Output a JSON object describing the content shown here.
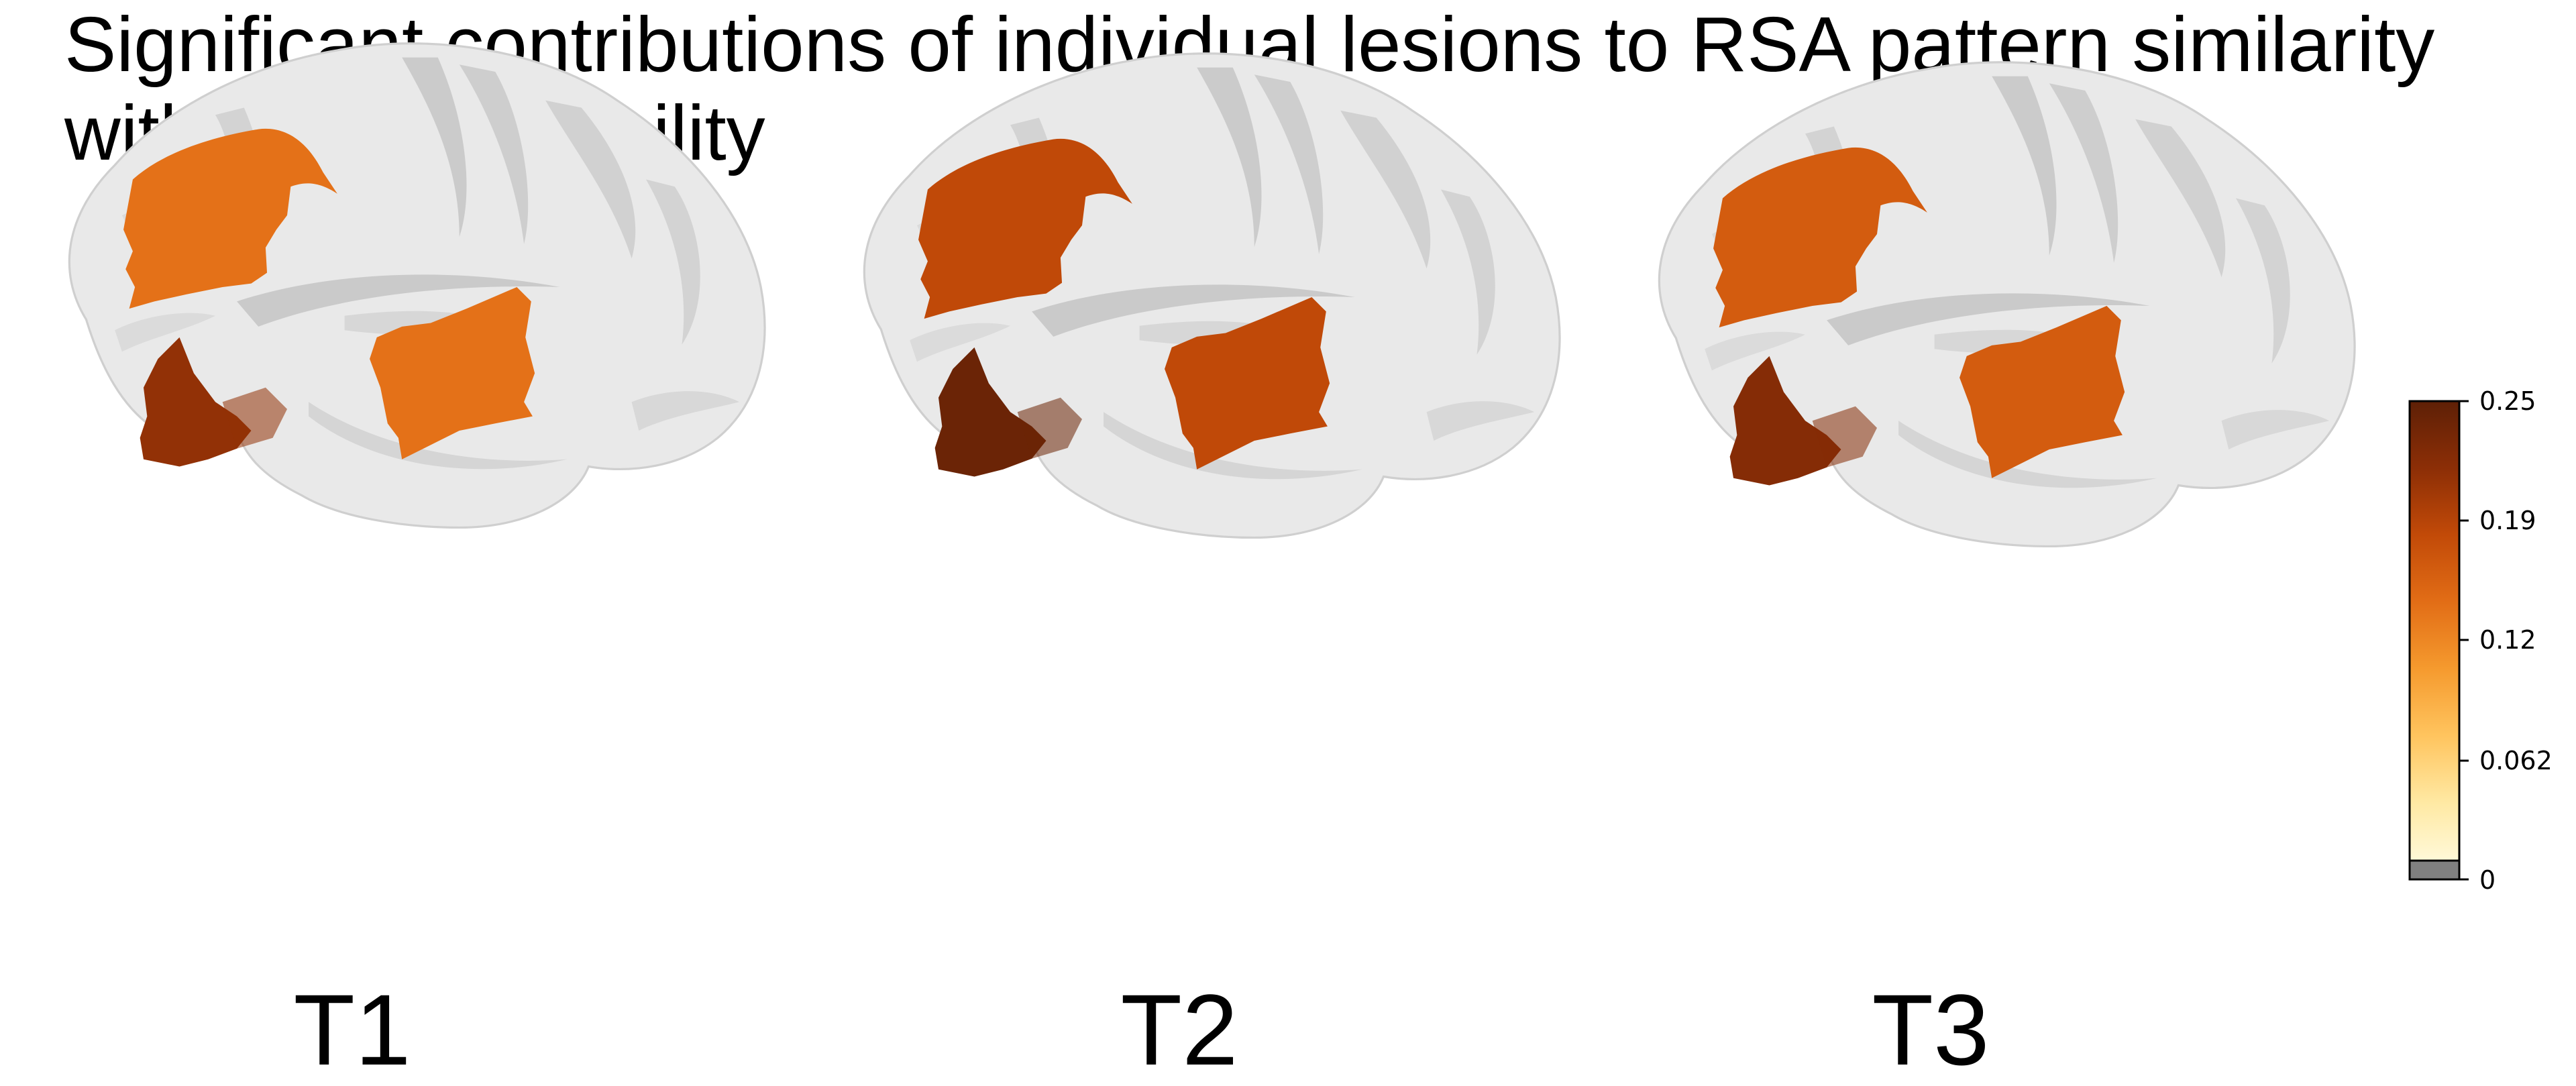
{
  "title_line1": "Significant contributions of individual lesions to RSA pattern similarity",
  "title_line2": "with language ability",
  "panels": [
    {
      "label": "T1",
      "region_values": {
        "frontal": 0.14,
        "temporal_posterior": 0.14,
        "temporal_anterior": 0.21
      }
    },
    {
      "label": "T2",
      "region_values": {
        "frontal": 0.18,
        "temporal_posterior": 0.18,
        "temporal_anterior": 0.24
      }
    },
    {
      "label": "T3",
      "region_values": {
        "frontal": 0.16,
        "temporal_posterior": 0.16,
        "temporal_anterior": 0.22
      }
    }
  ],
  "colorbar": {
    "ticks": [
      "0.25",
      "0.19",
      "0.12",
      "0.062",
      "0"
    ],
    "min": 0,
    "max": 0.25,
    "gradient": [
      "#fffbe0",
      "#ffe9a3",
      "#ffc45e",
      "#f59a2e",
      "#e26d16",
      "#c24a08",
      "#8c2e06",
      "#5e2006"
    ],
    "zero_color": "#808080"
  },
  "colors": {
    "brain_fill": "#e8e8e8",
    "brain_stroke": "#c8c8c8",
    "sulcus": "#c9c9c9"
  }
}
